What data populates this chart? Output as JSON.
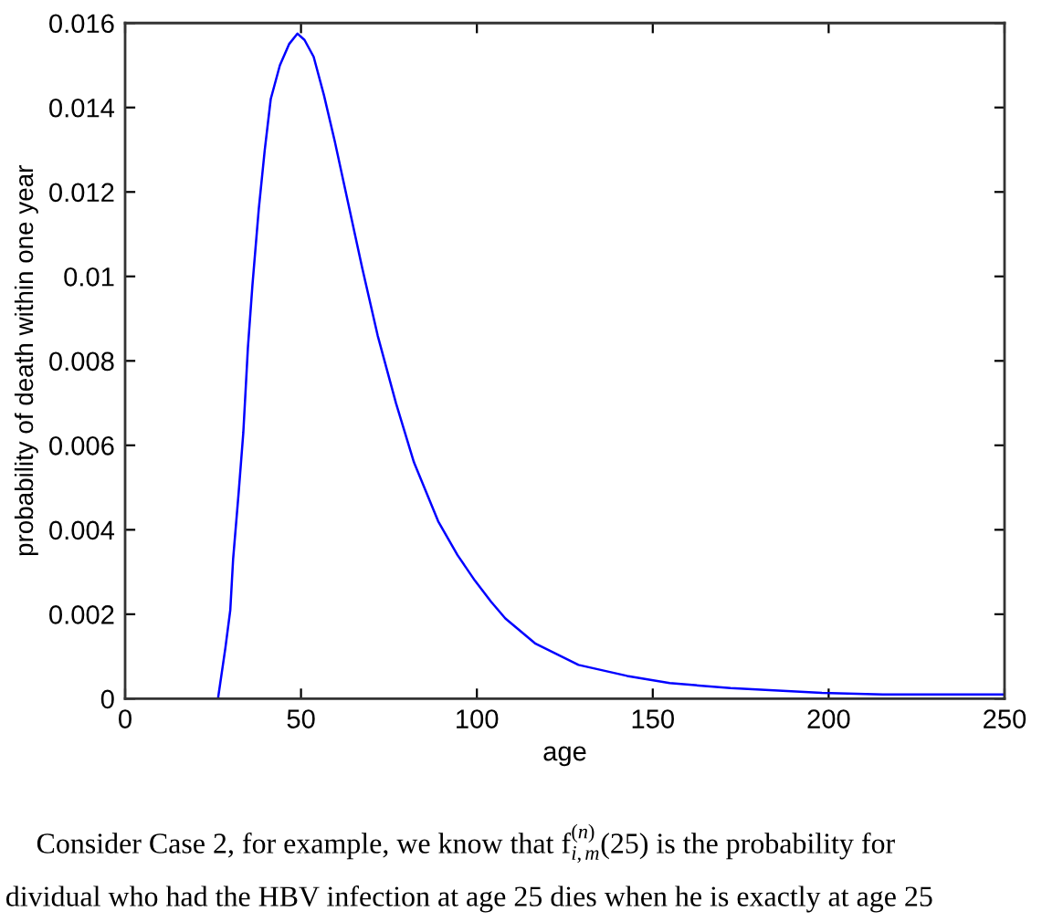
{
  "chart_data": {
    "type": "line",
    "xlabel": "age",
    "ylabel": "probability of death within one year",
    "xlim": [
      0,
      250
    ],
    "ylim": [
      0,
      0.016
    ],
    "xticks": [
      0,
      50,
      100,
      150,
      200,
      250
    ],
    "yticks": [
      0,
      0.002,
      0.004,
      0.006,
      0.008,
      0.01,
      0.012,
      0.014,
      0.016
    ],
    "series": [
      {
        "color": "#0000ff",
        "x": [
          26.4,
          28.5,
          29.9,
          30.7,
          32.3,
          33.6,
          34.9,
          36.2,
          38.0,
          39.7,
          41.4,
          44.0,
          46.6,
          49.0,
          51.0,
          53.6,
          56.5,
          59.6,
          62.2,
          67.4,
          71.8,
          77.0,
          82.1,
          89.0,
          94.5,
          99.4,
          104.0,
          108.1,
          116.7,
          128.9,
          142.7,
          154.8,
          172.1,
          198.1,
          215.4,
          250
        ],
        "values": [
          0,
          0.0012,
          0.0021,
          0.0033,
          0.0049,
          0.0063,
          0.0083,
          0.0098,
          0.0116,
          0.013,
          0.0142,
          0.015,
          0.0155,
          0.01575,
          0.0156,
          0.0152,
          0.0143,
          0.0132,
          0.0122,
          0.0102,
          0.0086,
          0.007,
          0.0056,
          0.0042,
          0.0034,
          0.0028,
          0.0023,
          0.0019,
          0.0013,
          0.0008,
          0.00054,
          0.00037,
          0.00025,
          0.00014,
          0.0001,
          0.0001
        ]
      }
    ],
    "annotations": [
      "Consider Case 2, for example, we know that f$^{(n)}$$_{i,m}$(25) is the probability for",
      "dividual who had the HBV infection at age 25 dies when he is exactly at age 25"
    ],
    "line_style": "solid",
    "marker": "none"
  }
}
